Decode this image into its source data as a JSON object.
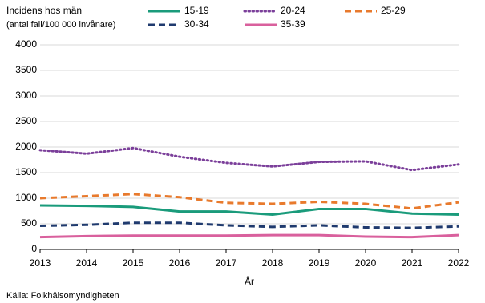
{
  "chart_data": {
    "type": "line",
    "title": "Incidens hos män",
    "subtitle": "(antal fall/100 000 invånare)",
    "x_label": "År",
    "source": "Källa: Folkhälsomyndigheten",
    "x": [
      2013,
      2014,
      2015,
      2016,
      2017,
      2018,
      2019,
      2020,
      2021,
      2022
    ],
    "xlim": [
      2013,
      2022
    ],
    "xticks": [
      2013,
      2014,
      2015,
      2016,
      2017,
      2018,
      2019,
      2020,
      2021,
      2022
    ],
    "ylim": [
      0,
      4000
    ],
    "yticks": [
      0,
      500,
      1000,
      1500,
      2000,
      2500,
      3000,
      3500,
      4000
    ],
    "grid": true,
    "series": [
      {
        "name": "15-19",
        "color": "#1a9b7b",
        "style": "solid",
        "values": [
          860,
          850,
          830,
          740,
          740,
          680,
          790,
          790,
          700,
          680
        ]
      },
      {
        "name": "20-24",
        "color": "#7b3f9a",
        "style": "dotted",
        "values": [
          1940,
          1870,
          1980,
          1810,
          1690,
          1620,
          1710,
          1720,
          1550,
          1660
        ]
      },
      {
        "name": "25-29",
        "color": "#e87a2d",
        "style": "dashed",
        "values": [
          1000,
          1040,
          1080,
          1020,
          910,
          890,
          930,
          890,
          800,
          920
        ]
      },
      {
        "name": "30-34",
        "color": "#1f3a6e",
        "style": "dashed",
        "values": [
          460,
          480,
          520,
          520,
          470,
          440,
          470,
          430,
          420,
          450
        ]
      },
      {
        "name": "35-39",
        "color": "#d9609d",
        "style": "solid",
        "values": [
          240,
          260,
          270,
          270,
          270,
          280,
          280,
          250,
          240,
          280
        ]
      }
    ]
  }
}
